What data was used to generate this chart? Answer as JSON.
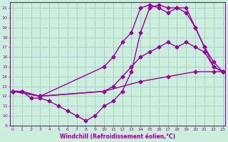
{
  "series": [
    {
      "x": [
        0,
        1,
        3,
        10,
        14,
        17,
        20,
        22,
        23
      ],
      "y": [
        12.5,
        12.5,
        12.0,
        12.5,
        13.5,
        14.0,
        14.5,
        14.5,
        14.5
      ]
    },
    {
      "x": [
        0,
        3,
        10,
        11,
        12,
        13,
        14,
        15,
        16,
        17,
        18,
        19,
        20,
        21,
        22,
        23
      ],
      "y": [
        12.5,
        12.0,
        12.5,
        13.0,
        14.0,
        15.0,
        16.0,
        16.5,
        17.0,
        17.5,
        17.0,
        17.5,
        17.0,
        16.5,
        15.0,
        14.5
      ]
    },
    {
      "x": [
        0,
        3,
        10,
        11,
        12,
        13,
        14,
        15,
        16,
        17,
        18,
        19,
        20,
        21,
        22,
        23
      ],
      "y": [
        12.5,
        12.0,
        15.0,
        16.0,
        17.5,
        18.5,
        21.0,
        21.3,
        21.0,
        20.5,
        21.0,
        20.5,
        19.0,
        17.0,
        15.0,
        14.5
      ]
    },
    {
      "x": [
        0,
        1,
        2,
        3,
        4,
        5,
        6,
        7,
        8,
        9,
        10,
        11,
        12,
        13,
        14,
        15,
        16,
        17,
        18,
        19,
        20,
        21,
        22,
        23
      ],
      "y": [
        12.5,
        12.5,
        11.8,
        11.8,
        11.5,
        11.0,
        10.5,
        10.0,
        9.5,
        10.0,
        11.0,
        11.5,
        12.5,
        14.5,
        18.5,
        21.0,
        21.3,
        21.0,
        21.0,
        21.0,
        19.0,
        17.0,
        15.5,
        14.5
      ]
    }
  ],
  "line_color": "#990099",
  "marker": "D",
  "markersize": 2.5,
  "linewidth": 1.0,
  "bg_color": "#cceedd",
  "grid_color": "#aacccc",
  "xlabel": "Windchill (Refroidissement éolien,°C)",
  "ylabel_ticks": [
    9,
    10,
    11,
    12,
    13,
    14,
    15,
    16,
    17,
    18,
    19,
    20,
    21
  ],
  "xtick_labels": [
    "0",
    "1",
    "2",
    "3",
    "4",
    "5",
    "6",
    "7",
    "8",
    "9",
    "10",
    "11",
    "12",
    "13",
    "14",
    "15",
    "16",
    "17",
    "18",
    "19",
    "20",
    "21",
    "22",
    "23"
  ],
  "xlim": [
    -0.3,
    23.3
  ],
  "ylim": [
    9,
    21.6
  ]
}
